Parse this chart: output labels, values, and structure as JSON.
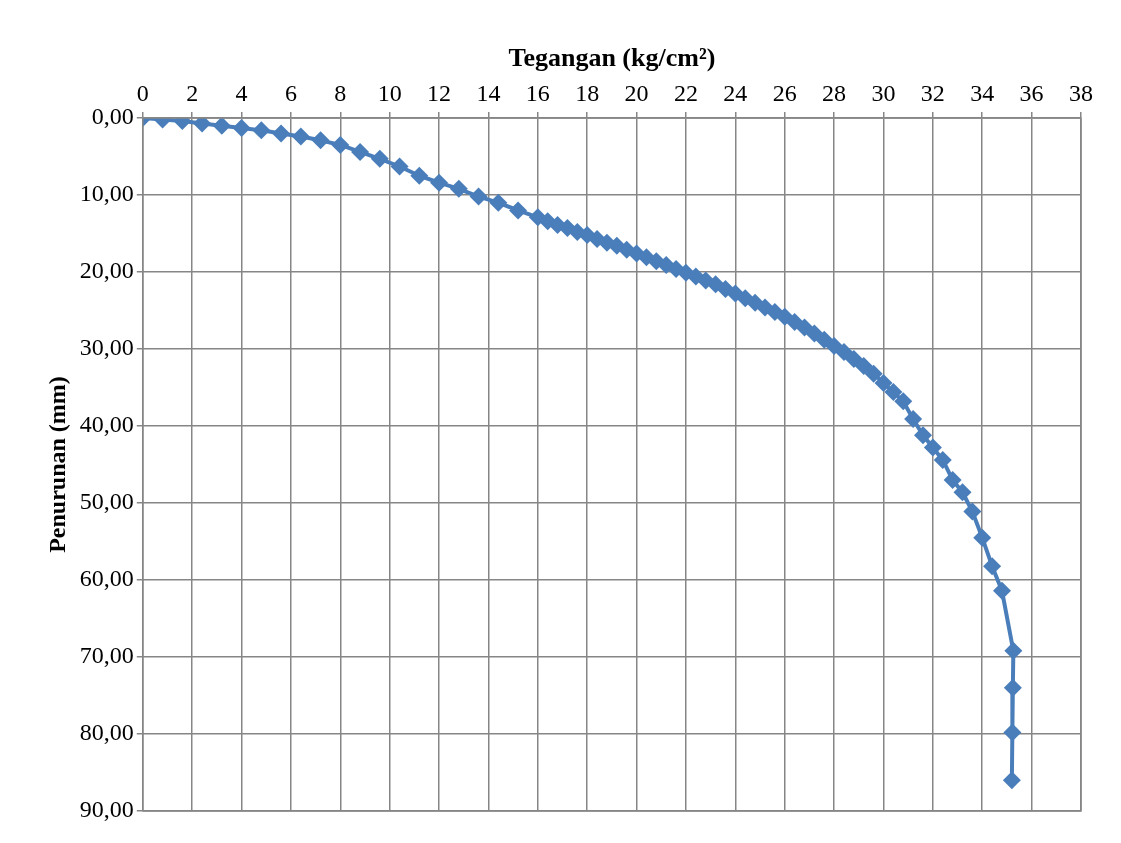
{
  "chart_data": {
    "type": "line",
    "xlabel": "Tegangan (kg/cm²)",
    "ylabel": "Penurunan (mm)",
    "xlim": [
      0,
      38
    ],
    "xticks": [
      0,
      2,
      4,
      6,
      8,
      10,
      12,
      14,
      16,
      18,
      20,
      22,
      24,
      26,
      28,
      30,
      32,
      34,
      36,
      38
    ],
    "ylim": [
      90,
      0
    ],
    "yticks": [
      {
        "value": 0,
        "label": "0,00"
      },
      {
        "value": 10,
        "label": "10,00"
      },
      {
        "value": 20,
        "label": "20,00"
      },
      {
        "value": 30,
        "label": "30,00"
      },
      {
        "value": 40,
        "label": "40,00"
      },
      {
        "value": 50,
        "label": "50,00"
      },
      {
        "value": 60,
        "label": "60,00"
      },
      {
        "value": 70,
        "label": "70,00"
      },
      {
        "value": 80,
        "label": "80,00"
      },
      {
        "value": 90,
        "label": "90,00"
      }
    ],
    "grid": true,
    "legend": false,
    "marker": "diamond",
    "line_style": "solid",
    "series": [
      {
        "color": "#4a7ebb",
        "x": [
          0,
          0.8,
          1.6,
          2.4,
          3.2,
          4.0,
          4.8,
          5.6,
          6.4,
          7.2,
          8.0,
          8.8,
          9.6,
          10.4,
          11.2,
          12.0,
          12.8,
          13.6,
          14.4,
          15.2,
          16.0,
          16.4,
          16.8,
          17.2,
          17.6,
          18.0,
          18.4,
          18.8,
          19.2,
          19.6,
          20.0,
          20.4,
          20.8,
          21.2,
          21.6,
          22.0,
          22.4,
          22.8,
          23.2,
          23.6,
          24.0,
          24.4,
          24.8,
          25.2,
          25.6,
          26.0,
          26.4,
          26.8,
          27.2,
          27.6,
          28.0,
          28.4,
          28.8,
          29.2,
          29.6,
          30.0,
          30.4,
          30.8,
          31.2,
          31.6,
          32.0,
          32.4,
          32.8,
          33.2,
          33.6,
          34.0,
          34.4,
          34.8,
          35.26,
          35.24,
          35.22,
          35.2
        ],
        "values": [
          0,
          0.2,
          0.4,
          0.7,
          1.0,
          1.3,
          1.6,
          2.0,
          2.4,
          2.9,
          3.5,
          4.4,
          5.3,
          6.3,
          7.5,
          8.4,
          9.2,
          10.2,
          11.0,
          12.0,
          12.9,
          13.4,
          13.9,
          14.3,
          14.8,
          15.2,
          15.7,
          16.2,
          16.6,
          17.1,
          17.6,
          18.1,
          18.6,
          19.1,
          19.6,
          20.1,
          20.6,
          21.1,
          21.6,
          22.2,
          22.8,
          23.4,
          24.0,
          24.6,
          25.2,
          25.8,
          26.5,
          27.2,
          28.0,
          28.8,
          29.6,
          30.4,
          31.3,
          32.2,
          33.2,
          34.4,
          35.6,
          36.8,
          39.1,
          41.2,
          42.8,
          44.4,
          47.0,
          48.6,
          51.1,
          54.5,
          58.2,
          61.4,
          69.2,
          74.0,
          79.8,
          86.0
        ]
      }
    ]
  }
}
